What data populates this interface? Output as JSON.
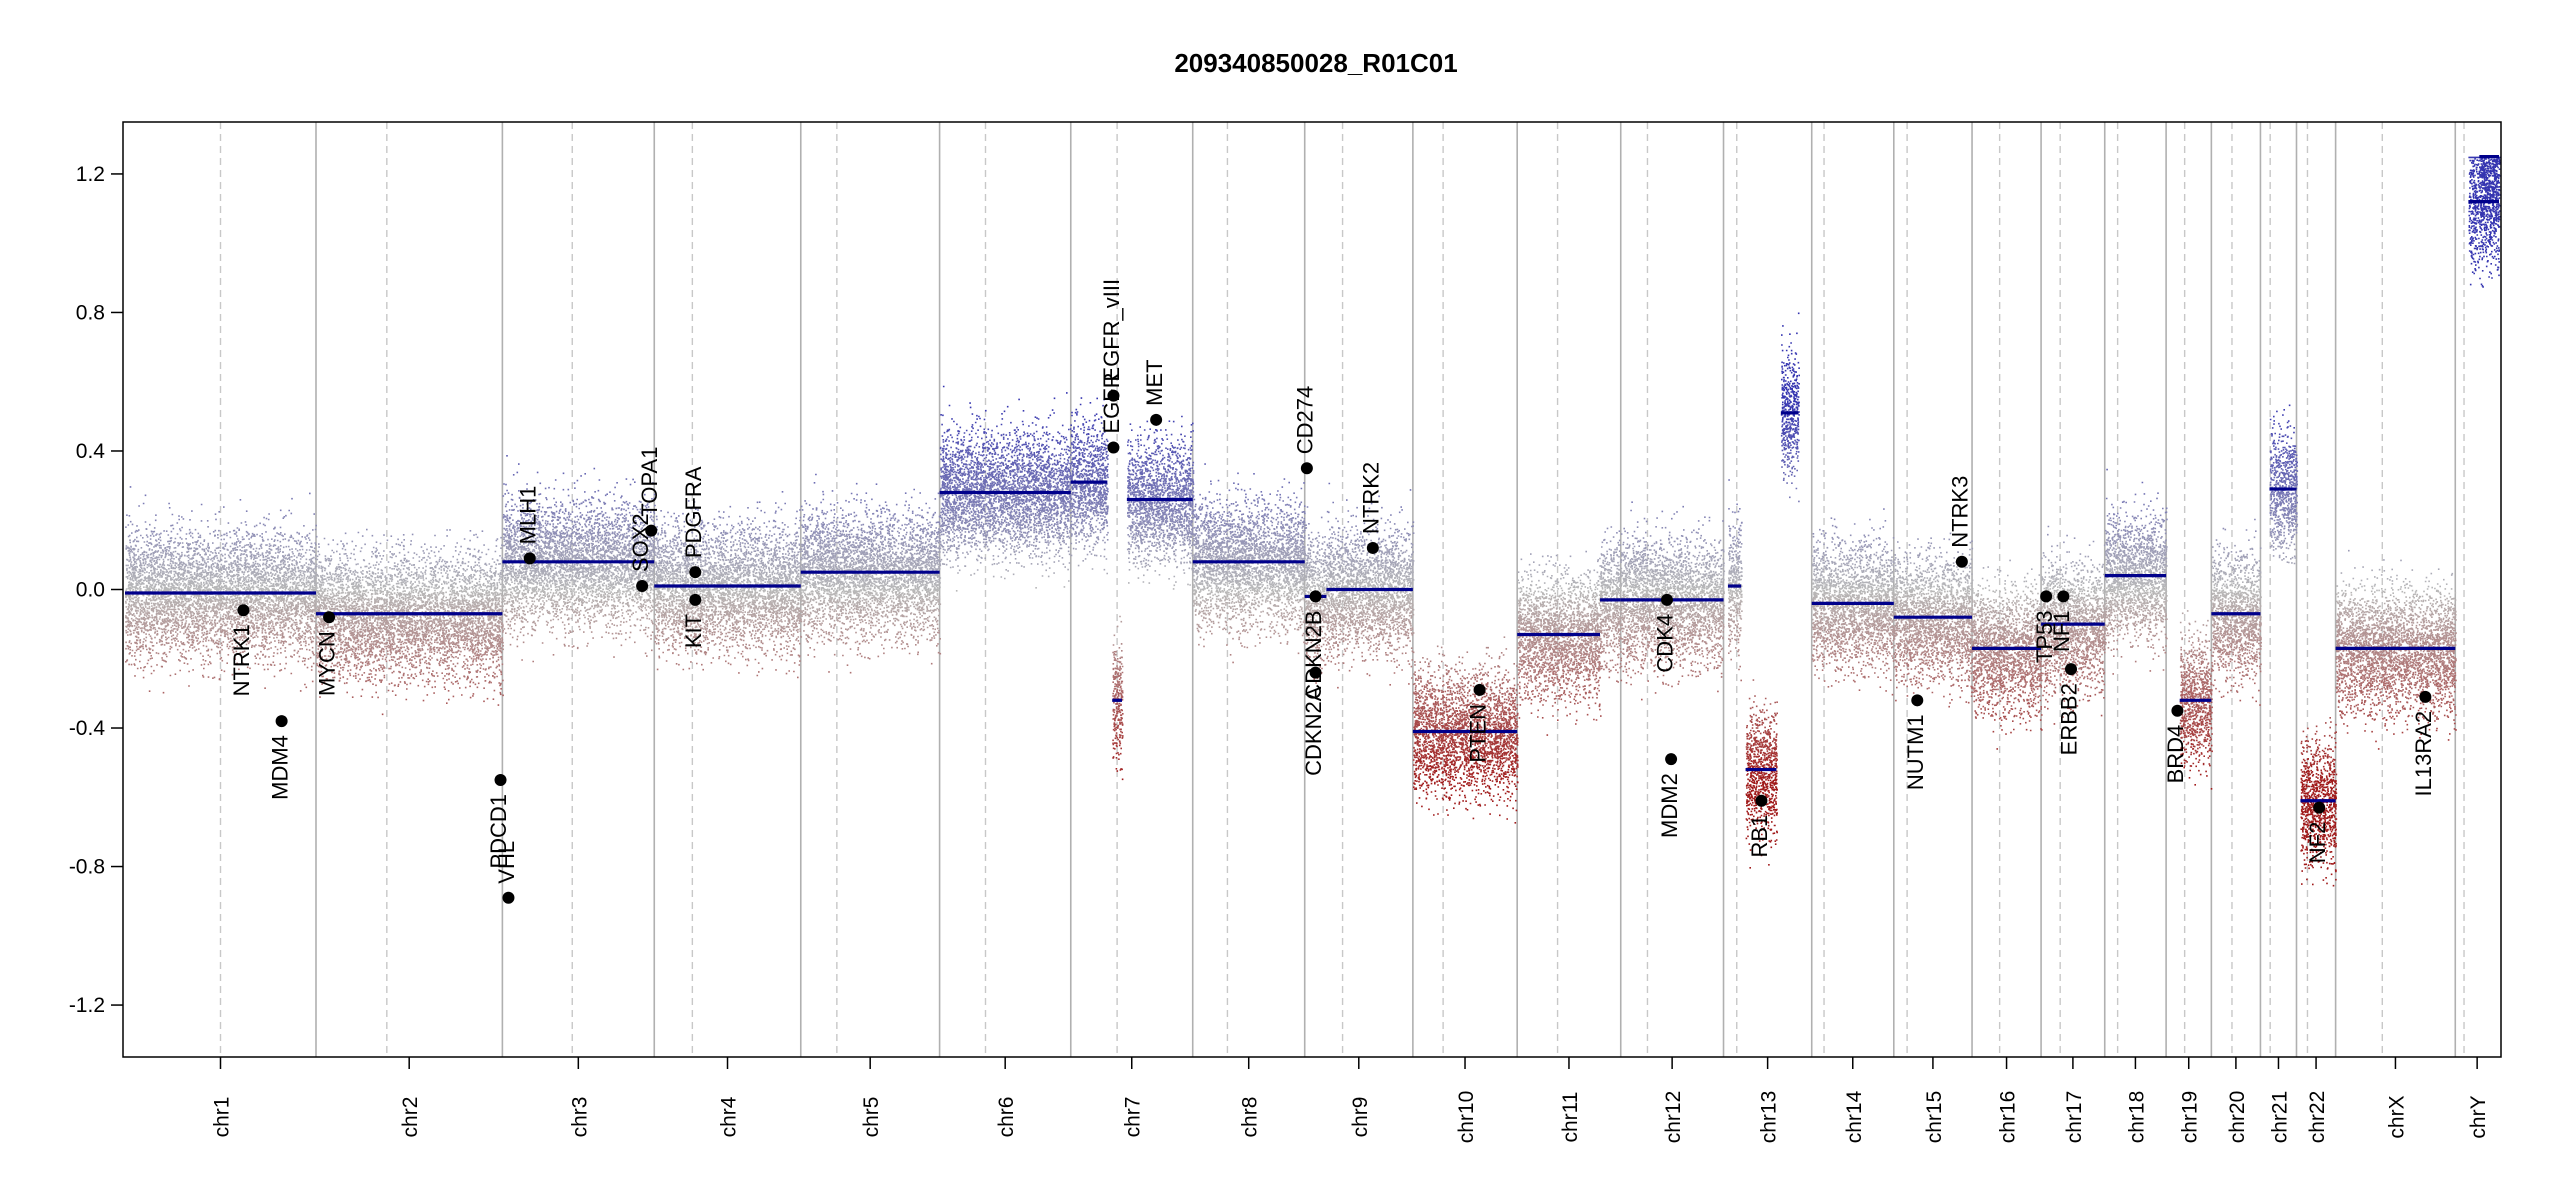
{
  "chart_data": {
    "type": "scatter",
    "title": "209340850028_R01C01",
    "xlabel": "",
    "ylabel": "",
    "ylim": [
      -1.35,
      1.35
    ],
    "yticks": [
      -1.2,
      -0.8,
      -0.4,
      0.0,
      0.4,
      0.8,
      1.2
    ],
    "ytick_labels": [
      "-1.2",
      "-0.8",
      "-0.4",
      "0.0",
      "0.4",
      "0.8",
      "1.2"
    ],
    "grid": false,
    "colors": {
      "gain": "#3434b0",
      "neutral": "#b8b8b8",
      "loss": "#a01a1a",
      "segment": "#00008b",
      "gene": "#000000",
      "boundary": "#b0b0b0"
    },
    "chromosomes": [
      {
        "name": "chr1",
        "size": 249,
        "centromere": 0.5
      },
      {
        "name": "chr2",
        "size": 243,
        "centromere": 0.38
      },
      {
        "name": "chr3",
        "size": 198,
        "centromere": 0.46
      },
      {
        "name": "chr4",
        "size": 191,
        "centromere": 0.26
      },
      {
        "name": "chr5",
        "size": 181,
        "centromere": 0.26
      },
      {
        "name": "chr6",
        "size": 171,
        "centromere": 0.35
      },
      {
        "name": "chr7",
        "size": 159,
        "centromere": 0.38
      },
      {
        "name": "chr8",
        "size": 146,
        "centromere": 0.31
      },
      {
        "name": "chr9",
        "size": 141,
        "centromere": 0.35
      },
      {
        "name": "chr10",
        "size": 136,
        "centromere": 0.29
      },
      {
        "name": "chr11",
        "size": 135,
        "centromere": 0.39
      },
      {
        "name": "chr12",
        "size": 134,
        "centromere": 0.26
      },
      {
        "name": "chr13",
        "size": 115,
        "centromere": 0.15
      },
      {
        "name": "chr14",
        "size": 107,
        "centromere": 0.15
      },
      {
        "name": "chr15",
        "size": 102,
        "centromere": 0.17
      },
      {
        "name": "chr16",
        "size": 90,
        "centromere": 0.4
      },
      {
        "name": "chr17",
        "size": 83,
        "centromere": 0.3
      },
      {
        "name": "chr18",
        "size": 80,
        "centromere": 0.21
      },
      {
        "name": "chr19",
        "size": 59,
        "centromere": 0.41
      },
      {
        "name": "chr20",
        "size": 64,
        "centromere": 0.42
      },
      {
        "name": "chr21",
        "size": 47,
        "centromere": 0.27
      },
      {
        "name": "chr22",
        "size": 51,
        "centromere": 0.28
      },
      {
        "name": "chrX",
        "size": 156,
        "centromere": 0.39
      },
      {
        "name": "chrY",
        "size": 57,
        "centromere": 0.2
      }
    ],
    "segments": [
      {
        "chr": "chr1",
        "from": 0,
        "to": 1,
        "value": -0.01
      },
      {
        "chr": "chr2",
        "from": 0,
        "to": 1,
        "value": -0.07
      },
      {
        "chr": "chr3",
        "from": 0,
        "to": 1,
        "value": 0.08
      },
      {
        "chr": "chr4",
        "from": 0,
        "to": 1,
        "value": 0.01
      },
      {
        "chr": "chr5",
        "from": 0,
        "to": 1,
        "value": 0.05
      },
      {
        "chr": "chr6",
        "from": 0,
        "to": 1,
        "value": 0.28
      },
      {
        "chr": "chr7",
        "from": 0,
        "to": 0.3,
        "value": 0.31
      },
      {
        "chr": "chr7",
        "from": 0.34,
        "to": 0.42,
        "value": -0.32
      },
      {
        "chr": "chr7",
        "from": 0.46,
        "to": 1,
        "value": 0.26
      },
      {
        "chr": "chr8",
        "from": 0,
        "to": 1,
        "value": 0.08
      },
      {
        "chr": "chr9",
        "from": 0,
        "to": 0.2,
        "value": -0.02
      },
      {
        "chr": "chr9",
        "from": 0.2,
        "to": 1,
        "value": 0.0
      },
      {
        "chr": "chr10",
        "from": 0,
        "to": 1,
        "value": -0.41
      },
      {
        "chr": "chr11",
        "from": 0,
        "to": 0.8,
        "value": -0.13
      },
      {
        "chr": "chr11",
        "from": 0.8,
        "to": 1,
        "value": -0.03
      },
      {
        "chr": "chr12",
        "from": 0,
        "to": 1,
        "value": -0.03
      },
      {
        "chr": "chr13",
        "from": 0.05,
        "to": 0.2,
        "value": 0.01
      },
      {
        "chr": "chr13",
        "from": 0.25,
        "to": 0.6,
        "value": -0.52
      },
      {
        "chr": "chr13",
        "from": 0.65,
        "to": 0.85,
        "value": 0.51
      },
      {
        "chr": "chr14",
        "from": 0,
        "to": 1,
        "value": -0.04
      },
      {
        "chr": "chr15",
        "from": 0,
        "to": 1,
        "value": -0.08
      },
      {
        "chr": "chr16",
        "from": 0,
        "to": 1,
        "value": -0.17
      },
      {
        "chr": "chr17",
        "from": 0,
        "to": 1,
        "value": -0.1
      },
      {
        "chr": "chr18",
        "from": 0,
        "to": 1,
        "value": 0.04
      },
      {
        "chr": "chr19",
        "from": 0.3,
        "to": 1,
        "value": -0.32
      },
      {
        "chr": "chr20",
        "from": 0,
        "to": 1,
        "value": -0.07
      },
      {
        "chr": "chr21",
        "from": 0.25,
        "to": 1,
        "value": 0.29
      },
      {
        "chr": "chr22",
        "from": 0.1,
        "to": 1,
        "value": -0.61
      },
      {
        "chr": "chrX",
        "from": 0,
        "to": 1,
        "value": -0.17
      },
      {
        "chr": "chrY",
        "from": 0.3,
        "to": 1,
        "value": 1.12
      },
      {
        "chr": "chrY",
        "from": 0.55,
        "to": 1,
        "value": 1.25
      }
    ],
    "genes": [
      {
        "name": "NTRK1",
        "chr": "chr1",
        "pos": 0.62,
        "value": -0.06,
        "label_side": "below"
      },
      {
        "name": "MDM4",
        "chr": "chr1",
        "pos": 0.82,
        "value": -0.38,
        "label_side": "below"
      },
      {
        "name": "MYCN",
        "chr": "chr2",
        "pos": 0.07,
        "value": -0.08,
        "label_side": "below"
      },
      {
        "name": "PDCD1",
        "chr": "chr2",
        "pos": 0.99,
        "value": -0.55,
        "label_side": "below"
      },
      {
        "name": "VHL",
        "chr": "chr3",
        "pos": 0.04,
        "value": -0.89,
        "label_side": "above"
      },
      {
        "name": "MLH1",
        "chr": "chr3",
        "pos": 0.18,
        "value": 0.09,
        "label_side": "above"
      },
      {
        "name": "SOX2",
        "chr": "chr3",
        "pos": 0.92,
        "value": 0.01,
        "label_side": "above"
      },
      {
        "name": "TOPA1",
        "chr": "chr3",
        "pos": 0.98,
        "value": 0.17,
        "label_side": "above"
      },
      {
        "name": "PDGFRA",
        "chr": "chr4",
        "pos": 0.28,
        "value": 0.05,
        "label_side": "above"
      },
      {
        "name": "KIT",
        "chr": "chr4",
        "pos": 0.28,
        "value": -0.03,
        "label_side": "below"
      },
      {
        "name": "EGFR_vIII",
        "chr": "chr7",
        "pos": 0.35,
        "value": 0.56,
        "label_side": "above"
      },
      {
        "name": "EGFR",
        "chr": "chr7",
        "pos": 0.35,
        "value": 0.41,
        "label_side": "above"
      },
      {
        "name": "MET",
        "chr": "chr7",
        "pos": 0.7,
        "value": 0.49,
        "label_side": "above"
      },
      {
        "name": "CD274",
        "chr": "chr9",
        "pos": 0.02,
        "value": 0.35,
        "label_side": "above"
      },
      {
        "name": "CDKN2B",
        "chr": "chr9",
        "pos": 0.1,
        "value": -0.02,
        "label_side": "below"
      },
      {
        "name": "CDKN2A",
        "chr": "chr9",
        "pos": 0.1,
        "value": -0.24,
        "label_side": "below"
      },
      {
        "name": "NTRK2",
        "chr": "chr9",
        "pos": 0.63,
        "value": 0.12,
        "label_side": "above"
      },
      {
        "name": "PTEN",
        "chr": "chr10",
        "pos": 0.64,
        "value": -0.29,
        "label_side": "below"
      },
      {
        "name": "CDK4",
        "chr": "chr12",
        "pos": 0.45,
        "value": -0.03,
        "label_side": "below"
      },
      {
        "name": "MDM2",
        "chr": "chr12",
        "pos": 0.49,
        "value": -0.49,
        "label_side": "below"
      },
      {
        "name": "RB1",
        "chr": "chr13",
        "pos": 0.43,
        "value": -0.61,
        "label_side": "below"
      },
      {
        "name": "NUTM1",
        "chr": "chr15",
        "pos": 0.3,
        "value": -0.32,
        "label_side": "below"
      },
      {
        "name": "NTRK3",
        "chr": "chr15",
        "pos": 0.87,
        "value": 0.08,
        "label_side": "above"
      },
      {
        "name": "TP53",
        "chr": "chr17",
        "pos": 0.08,
        "value": -0.02,
        "label_side": "below"
      },
      {
        "name": "NF1",
        "chr": "chr17",
        "pos": 0.35,
        "value": -0.02,
        "label_side": "below"
      },
      {
        "name": "ERBB2",
        "chr": "chr17",
        "pos": 0.47,
        "value": -0.23,
        "label_side": "below"
      },
      {
        "name": "BRD4",
        "chr": "chr19",
        "pos": 0.25,
        "value": -0.35,
        "label_side": "below"
      },
      {
        "name": "NF2",
        "chr": "chr22",
        "pos": 0.58,
        "value": -0.63,
        "label_side": "below"
      },
      {
        "name": "IL13RA2",
        "chr": "chrX",
        "pos": 0.75,
        "value": -0.31,
        "label_side": "below"
      }
    ]
  }
}
